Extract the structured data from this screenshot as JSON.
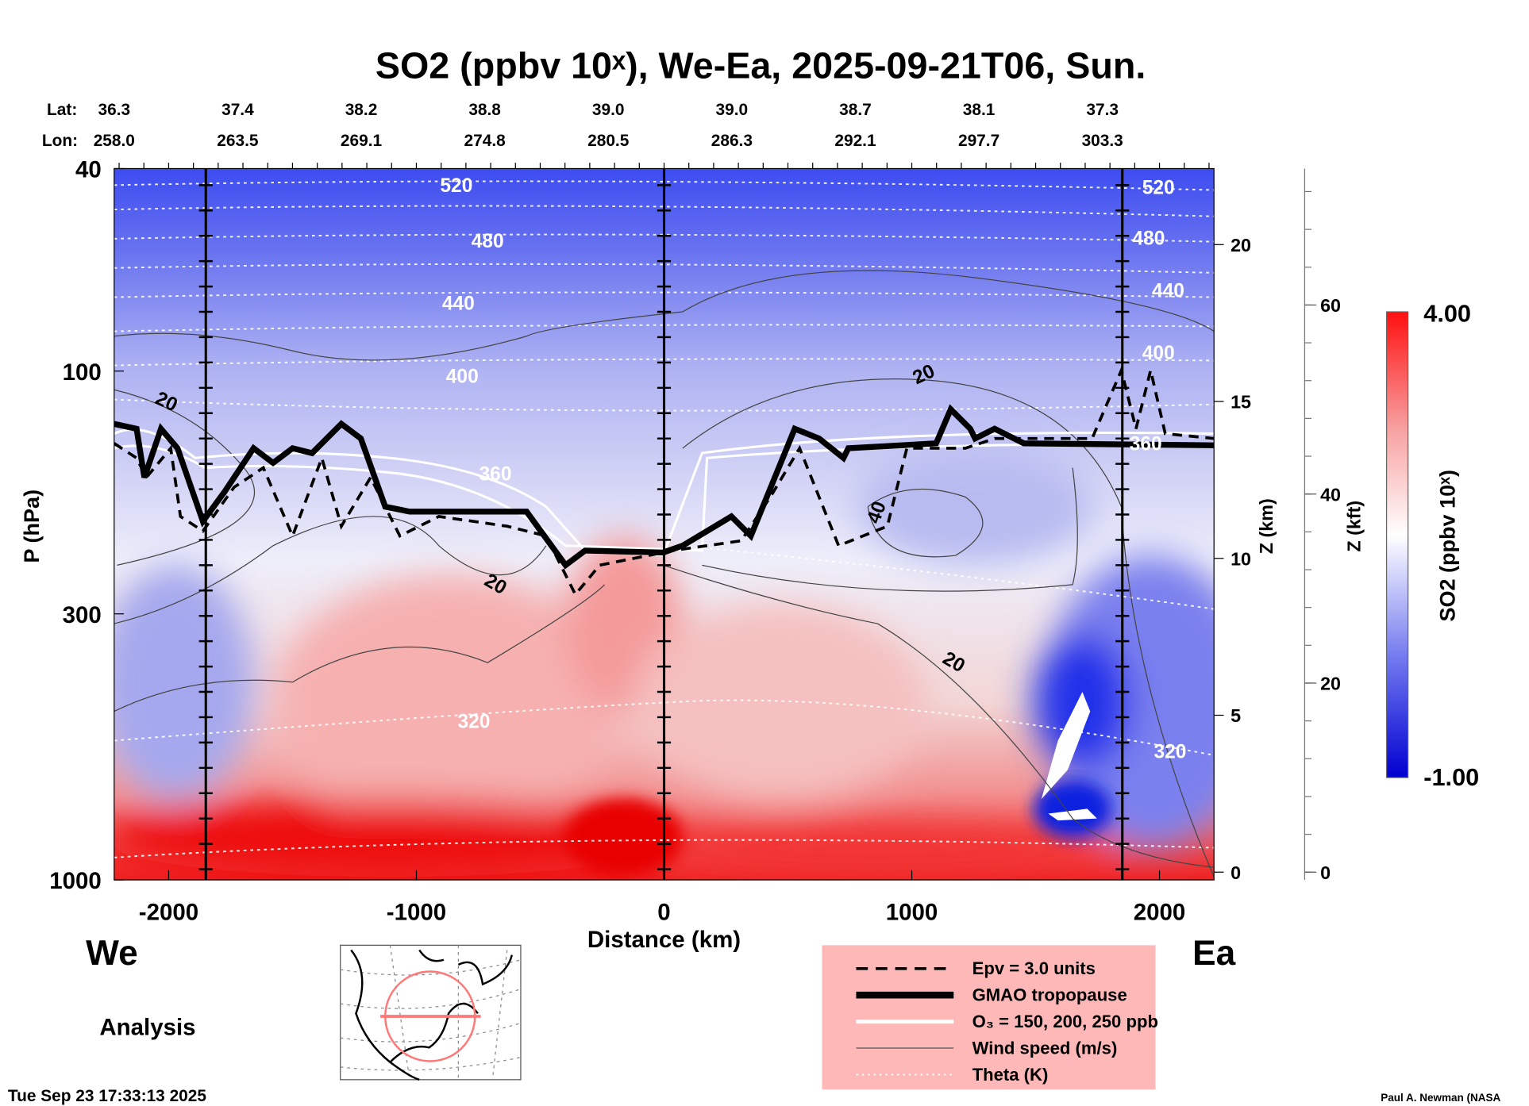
{
  "chart_data": {
    "type": "heatmap",
    "title": "SO2 (ppbv 10ˣ), We-Ea, 2025-09-21T06, Sun.",
    "xlabel": "Distance (km)",
    "ylabel": "P (hPa)",
    "xlim": [
      -2220,
      2220
    ],
    "ylim": [
      1000,
      40
    ],
    "xticks": [
      -2000,
      -1000,
      0,
      1000,
      2000
    ],
    "xtick_labels": [
      "-2000",
      "-1000",
      "0",
      "1000",
      "2000"
    ],
    "yticks": [
      40,
      100,
      300,
      1000
    ],
    "ytick_labels": [
      "40",
      "100",
      "300",
      "1000"
    ],
    "z_km": {
      "label": "Z (km)",
      "ticks": [
        0,
        5,
        10,
        15,
        20
      ],
      "labels": [
        "0",
        "5",
        "10",
        "15",
        "20"
      ]
    },
    "z_kft": {
      "label": "Z (kft)",
      "ticks": [
        0,
        20,
        40,
        60
      ],
      "labels": [
        "0",
        "20",
        "40",
        "60"
      ]
    },
    "colorbar": {
      "label": "SO2 (ppbv 10ˣ)",
      "min": -1.0,
      "max": 4.0,
      "min_label": "-1.00",
      "max_label": "4.00",
      "low_color": "#0000d0",
      "mid_color": "#ffffff",
      "high_color": "#ff1010"
    },
    "lat_label": "Lat:",
    "lon_label": "Lon:",
    "lat": [
      "36.3",
      "37.4",
      "38.2",
      "38.8",
      "39.0",
      "39.0",
      "38.7",
      "38.1",
      "37.3"
    ],
    "lon": [
      "258.0",
      "263.5",
      "269.1",
      "274.8",
      "280.5",
      "286.3",
      "292.1",
      "297.7",
      "303.3"
    ],
    "vertical_markers_km": [
      -1850,
      0,
      1850
    ],
    "theta_labels": [
      "520",
      "480",
      "440",
      "400",
      "360",
      "320",
      "520",
      "480",
      "440",
      "400",
      "360",
      "320"
    ],
    "wind_labels": [
      "20",
      "20",
      "20",
      "40",
      "20"
    ],
    "legend": [
      {
        "label": "Epv = 3.0 units",
        "style": "dashed"
      },
      {
        "label": "GMAO tropopause",
        "style": "thick"
      },
      {
        "label": "O₃ = 150, 200, 250 ppb",
        "style": "white"
      },
      {
        "label": "Wind speed (m/s)",
        "style": "thin"
      },
      {
        "label": "Theta (K)",
        "style": "dotted"
      }
    ],
    "legend_bg": "#ffb8b8"
  },
  "labels": {
    "west": "We",
    "east": "Ea",
    "analysis": "Analysis",
    "timestamp": "Tue Sep 23 17:33:13 2025",
    "credit": "Paul A. Newman (NASA"
  }
}
